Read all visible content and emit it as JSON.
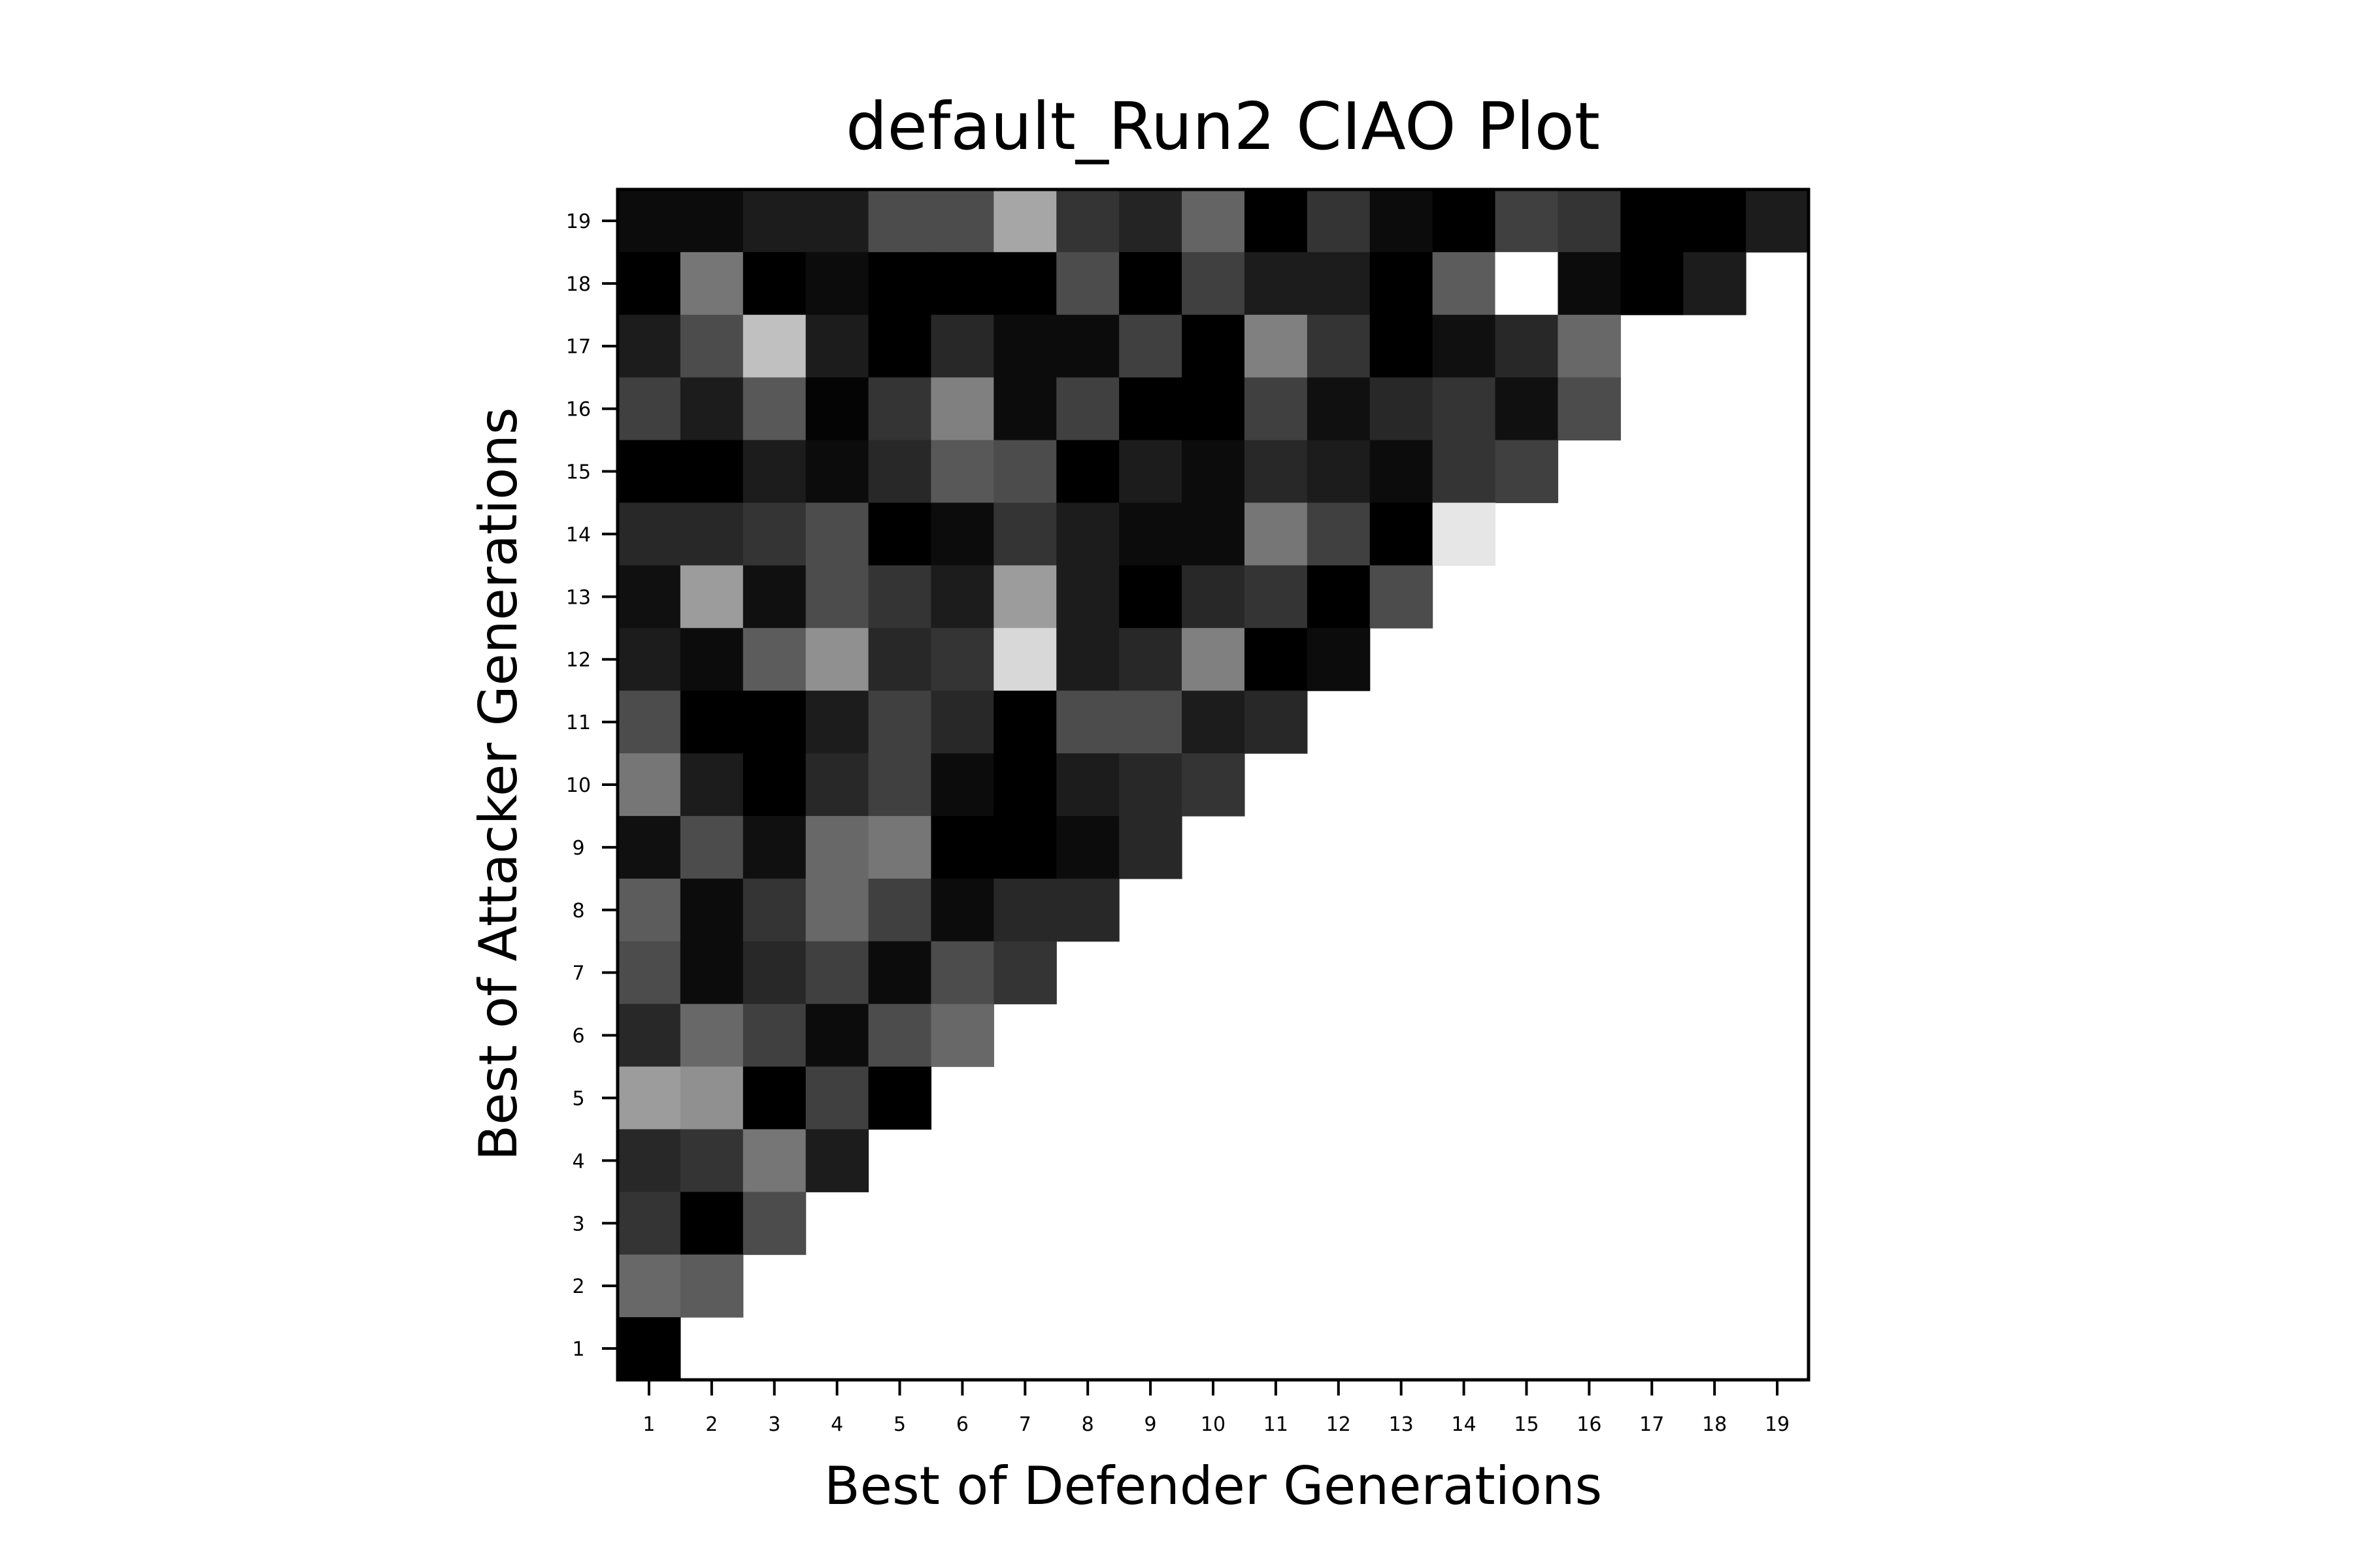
{
  "chart_data": {
    "type": "heatmap",
    "title": "default_Run2 CIAO Plot",
    "xlabel": "Best of Defender Generations",
    "ylabel": "Best of Attacker Generations",
    "x_ticks": [
      "1",
      "2",
      "3",
      "4",
      "5",
      "6",
      "7",
      "8",
      "9",
      "10",
      "11",
      "12",
      "13",
      "14",
      "15",
      "16",
      "17",
      "18",
      "19"
    ],
    "y_ticks": [
      "1",
      "2",
      "3",
      "4",
      "5",
      "6",
      "7",
      "8",
      "9",
      "10",
      "11",
      "12",
      "13",
      "14",
      "15",
      "16",
      "17",
      "18",
      "19"
    ],
    "colormap": "gray",
    "grid": false,
    "legend": "none",
    "value_range": [
      0,
      255
    ],
    "rows": [
      {
        "attacker_gen": 19,
        "values": [
          12,
          12,
          28,
          28,
          76,
          76,
          166,
          52,
          36,
          100,
          0,
          52,
          12,
          0,
          64,
          52,
          0,
          0,
          28
        ]
      },
      {
        "attacker_gen": 18,
        "values": [
          0,
          118,
          0,
          12,
          0,
          0,
          0,
          76,
          0,
          64,
          28,
          28,
          0,
          92,
          255,
          12,
          0,
          28
        ]
      },
      {
        "attacker_gen": 17,
        "values": [
          28,
          76,
          192,
          28,
          0,
          40,
          12,
          12,
          64,
          0,
          128,
          52,
          0,
          16,
          40,
          104
        ]
      },
      {
        "attacker_gen": 16,
        "values": [
          64,
          28,
          88,
          4,
          52,
          128,
          12,
          64,
          0,
          0,
          64,
          16,
          40,
          52,
          16,
          76
        ]
      },
      {
        "attacker_gen": 15,
        "values": [
          0,
          0,
          28,
          12,
          40,
          88,
          76,
          0,
          28,
          12,
          40,
          28,
          12,
          52,
          64
        ]
      },
      {
        "attacker_gen": 14,
        "values": [
          40,
          40,
          52,
          76,
          0,
          12,
          52,
          28,
          12,
          12,
          118,
          64,
          0,
          230
        ]
      },
      {
        "attacker_gen": 13,
        "values": [
          16,
          156,
          16,
          76,
          52,
          28,
          156,
          28,
          0,
          40,
          52,
          0,
          76
        ]
      },
      {
        "attacker_gen": 12,
        "values": [
          28,
          12,
          92,
          144,
          40,
          52,
          216,
          28,
          40,
          128,
          0,
          12
        ]
      },
      {
        "attacker_gen": 11,
        "values": [
          76,
          0,
          0,
          28,
          64,
          40,
          0,
          76,
          76,
          28,
          40
        ]
      },
      {
        "attacker_gen": 10,
        "values": [
          118,
          28,
          0,
          40,
          64,
          12,
          0,
          28,
          40,
          52
        ]
      },
      {
        "attacker_gen": 9,
        "values": [
          16,
          76,
          16,
          104,
          118,
          0,
          0,
          12,
          40
        ]
      },
      {
        "attacker_gen": 8,
        "values": [
          92,
          12,
          52,
          104,
          64,
          12,
          40,
          40
        ]
      },
      {
        "attacker_gen": 7,
        "values": [
          76,
          12,
          40,
          64,
          12,
          76,
          52
        ]
      },
      {
        "attacker_gen": 6,
        "values": [
          40,
          104,
          64,
          12,
          76,
          104
        ]
      },
      {
        "attacker_gen": 5,
        "values": [
          156,
          144,
          0,
          64,
          0
        ]
      },
      {
        "attacker_gen": 4,
        "values": [
          40,
          52,
          118,
          28
        ]
      },
      {
        "attacker_gen": 3,
        "values": [
          52,
          0,
          76
        ]
      },
      {
        "attacker_gen": 2,
        "values": [
          104,
          92
        ]
      },
      {
        "attacker_gen": 1,
        "values": [
          0
        ]
      }
    ]
  }
}
